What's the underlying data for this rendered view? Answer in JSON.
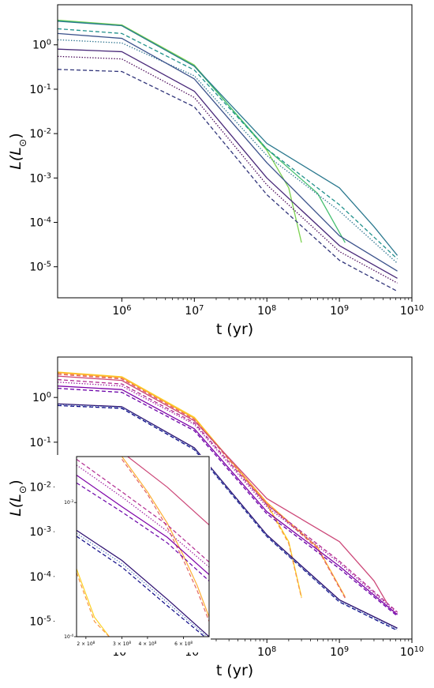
{
  "chart_data": [
    {
      "type": "line",
      "panel": "top",
      "xlabel": "t (yr)",
      "ylabel": "L(L_⊙)",
      "x_scale": "log",
      "y_scale": "log",
      "xlim": [
        130000.0,
        10000000000.0
      ],
      "ylim": [
        2e-06,
        8
      ],
      "x_ticks": [
        {
          "value": 1000000.0,
          "label": "10^6"
        },
        {
          "value": 10000000.0,
          "label": "10^7"
        },
        {
          "value": 100000000.0,
          "label": "10^8"
        },
        {
          "value": 1000000000.0,
          "label": "10^9"
        },
        {
          "value": 10000000000.0,
          "label": "10^10"
        }
      ],
      "y_ticks": [
        {
          "value": 1,
          "label": "10^0"
        },
        {
          "value": 0.1,
          "label": "10^-1"
        },
        {
          "value": 0.01,
          "label": "10^-2"
        },
        {
          "value": 0.001,
          "label": "10^-3"
        },
        {
          "value": 0.0001,
          "label": "10^-4"
        },
        {
          "value": 1e-05,
          "label": "10^-5"
        }
      ],
      "grid": false,
      "series": [
        {
          "color": "#7cd250",
          "style": "solid",
          "x": [
            130000.0,
            1000000.0,
            10000000.0,
            100000000.0,
            200000000.0,
            300000000.0
          ],
          "y": [
            3.6,
            2.8,
            0.35,
            0.0042,
            0.0006,
            3.5e-05
          ]
        },
        {
          "color": "#44bf70",
          "style": "solid",
          "x": [
            130000.0,
            1000000.0,
            10000000.0,
            100000000.0,
            500000000.0,
            1200000000.0
          ],
          "y": [
            3.5,
            2.7,
            0.33,
            0.0045,
            0.00045,
            3.5e-05
          ]
        },
        {
          "color": "#2a788e",
          "style": "solid",
          "x": [
            130000.0,
            1000000.0,
            10000000.0,
            100000000.0,
            1000000000.0,
            3000000000.0,
            6300000000.0
          ],
          "y": [
            3.4,
            2.7,
            0.33,
            0.006,
            0.0006,
            8e-05,
            1.8e-05
          ]
        },
        {
          "color": "#21918c",
          "style": "dashed",
          "x": [
            130000.0,
            1000000.0,
            10000000.0,
            100000000.0,
            1000000000.0,
            6300000000.0
          ],
          "y": [
            2.3,
            1.8,
            0.27,
            0.0045,
            0.00025,
            1.5e-05
          ]
        },
        {
          "color": "#2c728e",
          "style": "dotted",
          "x": [
            130000.0,
            1000000.0,
            10000000.0,
            100000000.0,
            1000000000.0,
            6300000000.0
          ],
          "y": [
            1.3,
            1.1,
            0.2,
            0.0032,
            0.00018,
            1.2e-05
          ]
        },
        {
          "color": "#3b528b",
          "style": "solid",
          "x": [
            130000.0,
            1000000.0,
            10000000.0,
            100000000.0,
            1000000000.0,
            6300000000.0
          ],
          "y": [
            1.8,
            1.4,
            0.17,
            0.0022,
            5e-05,
            8e-06
          ]
        },
        {
          "color": "#482878",
          "style": "solid",
          "x": [
            130000.0,
            1000000.0,
            10000000.0,
            100000000.0,
            1000000000.0,
            6300000000.0
          ],
          "y": [
            0.8,
            0.7,
            0.09,
            0.001,
            3e-05,
            5.5e-06
          ]
        },
        {
          "color": "#440154",
          "style": "dotted",
          "x": [
            130000.0,
            1000000.0,
            10000000.0,
            100000000.0,
            1000000000.0,
            6300000000.0
          ],
          "y": [
            0.55,
            0.48,
            0.065,
            0.0007,
            2.2e-05,
            4.3e-06
          ]
        },
        {
          "color": "#31357a",
          "style": "dashed",
          "x": [
            130000.0,
            1000000.0,
            10000000.0,
            100000000.0,
            1000000000.0,
            6300000000.0
          ],
          "y": [
            0.28,
            0.25,
            0.04,
            0.00042,
            1.4e-05,
            2.8e-06
          ]
        }
      ]
    },
    {
      "type": "line",
      "panel": "bottom",
      "xlabel": "t (yr)",
      "ylabel": "L(L_⊙)",
      "x_scale": "log",
      "y_scale": "log",
      "xlim": [
        130000.0,
        10000000000.0
      ],
      "ylim": [
        4e-06,
        8
      ],
      "x_ticks": [
        {
          "value": 1000000.0,
          "label": "10^6"
        },
        {
          "value": 10000000.0,
          "label": "10^7"
        },
        {
          "value": 100000000.0,
          "label": "10^8"
        },
        {
          "value": 1000000000.0,
          "label": "10^9"
        },
        {
          "value": 10000000000.0,
          "label": "10^10"
        }
      ],
      "y_ticks": [
        {
          "value": 1,
          "label": "10^0"
        },
        {
          "value": 0.1,
          "label": "10^-1"
        },
        {
          "value": 0.01,
          "label": "10^-2"
        },
        {
          "value": 0.001,
          "label": "10^-3"
        },
        {
          "value": 0.0001,
          "label": "10^-4"
        },
        {
          "value": 1e-05,
          "label": "10^-5"
        }
      ],
      "grid": false,
      "series": [
        {
          "color": "#fcd225",
          "style": "solid",
          "x": [
            130000.0,
            1000000.0,
            10000000.0,
            100000000.0,
            200000000.0,
            300000000.0
          ],
          "y": [
            3.7,
            2.9,
            0.36,
            0.0042,
            0.0006,
            3.5e-05
          ]
        },
        {
          "color": "#f89540",
          "style": "dashed",
          "x": [
            130000.0,
            1000000.0,
            10000000.0,
            100000000.0,
            200000000.0,
            300000000.0
          ],
          "y": [
            3.5,
            2.7,
            0.34,
            0.004,
            0.00055,
            3.3e-05
          ]
        },
        {
          "color": "#fdae32",
          "style": "solid",
          "x": [
            130000.0,
            1000000.0,
            10000000.0,
            100000000.0,
            500000000.0,
            1200000000.0
          ],
          "y": [
            3.6,
            2.8,
            0.34,
            0.0045,
            0.00045,
            3.5e-05
          ]
        },
        {
          "color": "#e16462",
          "style": "dashed",
          "x": [
            130000.0,
            1000000.0,
            10000000.0,
            100000000.0,
            500000000.0,
            1200000000.0
          ],
          "y": [
            3.3,
            2.6,
            0.32,
            0.0042,
            0.00042,
            3.3e-05
          ]
        },
        {
          "color": "#cc4778",
          "style": "solid",
          "x": [
            130000.0,
            1000000.0,
            10000000.0,
            100000000.0,
            1000000000.0,
            3000000000.0,
            4500000000.0
          ],
          "y": [
            3.0,
            2.4,
            0.3,
            0.0055,
            0.0006,
            8e-05,
            2.6e-05
          ]
        },
        {
          "color": "#b12a90",
          "style": "dashed",
          "x": [
            130000.0,
            1000000.0,
            10000000.0,
            100000000.0,
            1000000000.0,
            6300000000.0
          ],
          "y": [
            2.5,
            2.0,
            0.27,
            0.004,
            0.00022,
            1.6e-05
          ]
        },
        {
          "color": "#9c179e",
          "style": "dotted",
          "x": [
            130000.0,
            1000000.0,
            10000000.0,
            100000000.0,
            1000000000.0,
            6300000000.0
          ],
          "y": [
            2.2,
            1.8,
            0.25,
            0.0036,
            0.0002,
            1.5e-05
          ]
        },
        {
          "color": "#7e03a8",
          "style": "solid",
          "x": [
            130000.0,
            1000000.0,
            10000000.0,
            100000000.0,
            1000000000.0,
            6300000000.0
          ],
          "y": [
            1.8,
            1.5,
            0.2,
            0.0028,
            0.00017,
            1.4e-05
          ]
        },
        {
          "color": "#6a00a8",
          "style": "dashed",
          "x": [
            130000.0,
            1000000.0,
            10000000.0,
            100000000.0,
            1000000000.0,
            6300000000.0
          ],
          "y": [
            1.6,
            1.3,
            0.18,
            0.0025,
            0.00015,
            1.3e-05
          ]
        },
        {
          "color": "#2a0c6e",
          "style": "solid",
          "x": [
            130000.0,
            1000000.0,
            10000000.0,
            100000000.0,
            1000000000.0,
            6300000000.0
          ],
          "y": [
            0.72,
            0.62,
            0.075,
            0.00085,
            3e-05,
            7e-06
          ]
        },
        {
          "color": "#0d0887",
          "style": "dashed",
          "x": [
            130000.0,
            1000000.0,
            10000000.0,
            100000000.0,
            1000000000.0,
            6300000000.0
          ],
          "y": [
            0.66,
            0.57,
            0.068,
            0.00078,
            2.7e-05,
            6.2e-06
          ]
        },
        {
          "color": "#5b7fbf",
          "style": "dotted",
          "x": [
            130000.0,
            1000000.0,
            10000000.0,
            100000000.0,
            1000000000.0,
            6300000000.0
          ],
          "y": [
            0.69,
            0.6,
            0.071,
            0.0008,
            2.8e-05,
            6.5e-06
          ]
        }
      ],
      "inset": {
        "xlim": [
          180000000.0,
          800000000.0
        ],
        "ylim": [
          0.0001,
          0.0022
        ],
        "x_ticks": [
          {
            "value": 200000000.0,
            "label": "2 × 10^8"
          },
          {
            "value": 300000000.0,
            "label": "3 × 10^8"
          },
          {
            "value": 400000000.0,
            "label": "4 × 10^8"
          },
          {
            "value": 600000000.0,
            "label": "6 × 10^8"
          }
        ],
        "y_ticks": [
          {
            "value": 0.001,
            "label": "10^-3"
          },
          {
            "value": 0.0001,
            "label": "10^-4"
          }
        ],
        "series": [
          {
            "color": "#fcd225",
            "style": "solid",
            "x": [
              180000000.0,
              220000000.0,
              260000000.0
            ],
            "y": [
              0.00032,
              0.00014,
              0.0001
            ]
          },
          {
            "color": "#f89540",
            "style": "dashed",
            "x": [
              180000000.0,
              220000000.0,
              260000000.0
            ],
            "y": [
              0.0003,
              0.00013,
              0.0001
            ]
          },
          {
            "color": "#fdae32",
            "style": "solid",
            "x": [
              300000000.0,
              400000000.0,
              500000000.0,
              600000000.0,
              700000000.0,
              800000000.0
            ],
            "y": [
              0.0022,
              0.0012,
              0.0007,
              0.0004,
              0.00024,
              0.00014
            ]
          },
          {
            "color": "#e16462",
            "style": "dashed",
            "x": [
              300000000.0,
              400000000.0,
              500000000.0,
              600000000.0,
              700000000.0,
              800000000.0
            ],
            "y": [
              0.0021,
              0.00115,
              0.00065,
              0.00037,
              0.00022,
              0.00013
            ]
          },
          {
            "color": "#cc4778",
            "style": "solid",
            "x": [
              320000000.0,
              500000000.0,
              800000000.0
            ],
            "y": [
              0.0022,
              0.0013,
              0.00068
            ]
          },
          {
            "color": "#b12a90",
            "style": "dashed",
            "x": [
              180000000.0,
              300000000.0,
              500000000.0,
              800000000.0
            ],
            "y": [
              0.0021,
              0.0012,
              0.00068,
              0.00036
            ]
          },
          {
            "color": "#9c179e",
            "style": "dotted",
            "x": [
              180000000.0,
              300000000.0,
              500000000.0,
              800000000.0
            ],
            "y": [
              0.0019,
              0.0011,
              0.00061,
              0.00033
            ]
          },
          {
            "color": "#7e03a8",
            "style": "solid",
            "x": [
              180000000.0,
              300000000.0,
              500000000.0,
              800000000.0
            ],
            "y": [
              0.0016,
              0.00093,
              0.00055,
              0.00029
            ]
          },
          {
            "color": "#6a00a8",
            "style": "dashed",
            "x": [
              180000000.0,
              300000000.0,
              500000000.0,
              800000000.0
            ],
            "y": [
              0.0014,
              0.00085,
              0.0005,
              0.00026
            ]
          },
          {
            "color": "#2a0c6e",
            "style": "solid",
            "x": [
              180000000.0,
              300000000.0,
              500000000.0,
              800000000.0
            ],
            "y": [
              0.00062,
              0.00037,
              0.00019,
              0.0001
            ]
          },
          {
            "color": "#0d0887",
            "style": "dashed",
            "x": [
              180000000.0,
              300000000.0,
              500000000.0,
              760000000.0
            ],
            "y": [
              0.00056,
              0.00033,
              0.00017,
              0.0001
            ]
          },
          {
            "color": "#5b7fbf",
            "style": "dotted",
            "x": [
              180000000.0,
              300000000.0,
              500000000.0,
              780000000.0
            ],
            "y": [
              0.00059,
              0.00035,
              0.00018,
              0.0001
            ]
          }
        ]
      }
    }
  ]
}
